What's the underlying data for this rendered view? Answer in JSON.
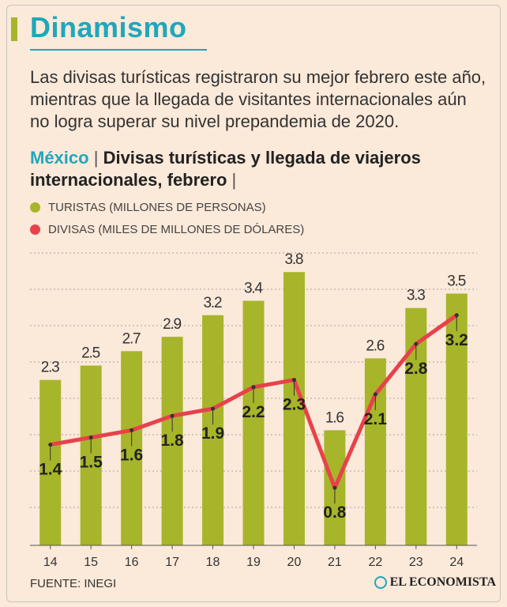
{
  "header": {
    "title": "Dinamismo",
    "intro": "Las divisas turísticas registraron su mejor febrero este año, mientras que la llegada de visitantes internacionales aún no logra superar su nivel prepandemia de 2020."
  },
  "chart_heading": {
    "country": "México",
    "separator": "|",
    "title": "Divisas turísticas y llegada de viajeros internacionales, febrero",
    "trailing": "|"
  },
  "chart_data": {
    "type": "bar",
    "categories": [
      "14",
      "15",
      "16",
      "17",
      "18",
      "19",
      "20",
      "21",
      "22",
      "23",
      "24"
    ],
    "series": [
      {
        "name": "TURISTAS (MILLONES DE PERSONAS)",
        "type": "bar",
        "color": "#a7b52a",
        "values": [
          2.3,
          2.5,
          2.7,
          2.9,
          3.2,
          3.4,
          3.8,
          1.6,
          2.6,
          3.3,
          3.5
        ]
      },
      {
        "name": "DIVISAS (MILES DE MILLONES DE DÓLARES)",
        "type": "line",
        "color": "#e8414b",
        "values": [
          1.4,
          1.5,
          1.6,
          1.8,
          1.9,
          2.2,
          2.3,
          0.8,
          2.1,
          2.8,
          3.2
        ]
      }
    ],
    "grid": true,
    "legend_position": "top-left"
  },
  "footer": {
    "source": "FUENTE: INEGI",
    "brand": "EL ECONOMISTA"
  }
}
